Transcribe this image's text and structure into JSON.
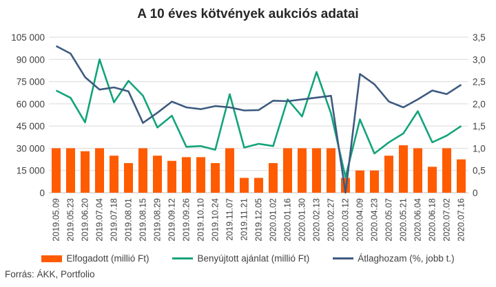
{
  "chart_data": {
    "type": "bar",
    "title": "A 10 éves kötvények aukciós adatai",
    "source": "Forrás: ÁKK, Portfolio",
    "categories": [
      "2019.05.09",
      "2019.05.23",
      "2019.06.20",
      "2019.07.04",
      "2019.07.18",
      "2019.08.01",
      "2019.08.15",
      "2019.08.29",
      "2019.09.12",
      "2019.09.26",
      "2019.10.10",
      "2019.10.24",
      "2019.11.07",
      "2019.11.21",
      "2019.12.05",
      "2020.01.02",
      "2020.01.16",
      "2020.01.30",
      "2020.02.13",
      "2020.02.27",
      "2020.03.12",
      "2020.04.09",
      "2020.04.23",
      "2020.05.07",
      "2020.05.21",
      "2020.06.04",
      "2020.06.18",
      "2020.07.02",
      "2020.07.16"
    ],
    "left_axis": {
      "min": 0,
      "max": 105000,
      "ticks": [
        "0",
        "15 000",
        "30 000",
        "45 000",
        "60 000",
        "75 000",
        "90 000",
        "105 000"
      ]
    },
    "right_axis": {
      "min": 0,
      "max": 3.5,
      "ticks": [
        "0",
        "0,5",
        "1,0",
        "1,5",
        "2,0",
        "2,5",
        "3,0",
        "3,5"
      ]
    },
    "grid": true,
    "legend_position": "bottom",
    "series": [
      {
        "name": "Elfogadott (millió Ft)",
        "type": "bar",
        "axis": "left",
        "color": "#ff5b00",
        "values": [
          30000,
          30000,
          28000,
          30000,
          25000,
          20000,
          30000,
          25000,
          21500,
          24000,
          24000,
          20000,
          30000,
          10000,
          10000,
          20000,
          30000,
          30000,
          30000,
          30000,
          10000,
          15000,
          15000,
          25000,
          32000,
          30000,
          17500,
          30000,
          22500
        ]
      },
      {
        "name": "Benyújtott ajánlat (millió Ft)",
        "type": "line",
        "axis": "left",
        "color": "#12a37a",
        "values": [
          69000,
          64000,
          47500,
          90000,
          61000,
          75500,
          65500,
          44000,
          52000,
          31000,
          31500,
          29000,
          66500,
          30500,
          33000,
          31500,
          63000,
          51500,
          81500,
          53500,
          10500,
          49500,
          26500,
          34000,
          40000,
          55000,
          34000,
          38500,
          45000
        ]
      },
      {
        "name": "Átlaghozam (%, jobb t.)",
        "type": "line",
        "axis": "right",
        "color": "#3d5a80",
        "values": [
          3.3,
          3.13,
          2.6,
          2.32,
          2.37,
          2.28,
          1.57,
          1.8,
          2.05,
          1.92,
          1.88,
          1.95,
          1.92,
          1.85,
          1.86,
          2.07,
          2.06,
          2.1,
          2.14,
          2.18,
          0.0,
          2.67,
          2.44,
          2.05,
          1.92,
          2.1,
          2.3,
          2.22,
          2.43
        ]
      }
    ]
  }
}
